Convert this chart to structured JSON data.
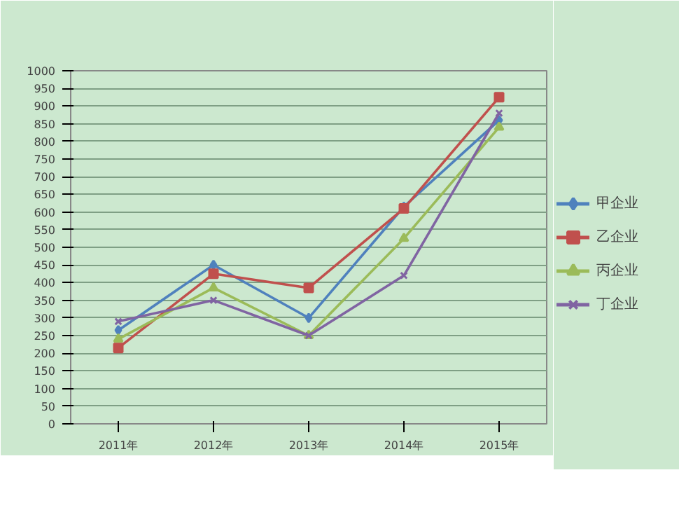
{
  "chart_data": {
    "type": "line",
    "categories": [
      "2011年",
      "2012年",
      "2013年",
      "2014年",
      "2015年"
    ],
    "ylim": [
      0,
      1000
    ],
    "yticks": [
      0,
      50,
      100,
      150,
      200,
      250,
      300,
      350,
      400,
      450,
      500,
      550,
      600,
      650,
      700,
      750,
      800,
      850,
      900,
      950,
      1000
    ],
    "grid": "y",
    "legend": "right",
    "line_style": "solid",
    "series": [
      {
        "name": "甲企业",
        "color": "#4f81bd",
        "marker": "diamond",
        "values": [
          265,
          450,
          300,
          615,
          860
        ]
      },
      {
        "name": "乙企业",
        "color": "#c0504d",
        "marker": "square",
        "values": [
          215,
          425,
          385,
          610,
          925
        ]
      },
      {
        "name": "丙企业",
        "color": "#9bbb59",
        "marker": "triangle",
        "values": [
          240,
          385,
          250,
          525,
          840
        ]
      },
      {
        "name": "丁企业",
        "color": "#8064a2",
        "marker": "cross",
        "values": [
          290,
          350,
          250,
          420,
          880
        ]
      }
    ]
  }
}
